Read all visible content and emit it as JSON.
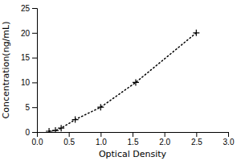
{
  "chart_data": {
    "type": "line",
    "x": [
      0.19,
      0.29,
      0.38,
      0.6,
      1.0,
      1.55,
      2.5
    ],
    "values": [
      0.16,
      0.31,
      0.78,
      2.5,
      5.0,
      10.0,
      20.0
    ],
    "xlabel": "Optical Density",
    "ylabel": "Concentration(ng/mL)",
    "xlim": [
      0,
      3
    ],
    "ylim": [
      0,
      25
    ],
    "xticks": [
      {
        "value": 0,
        "label": "0.0"
      },
      0.5,
      {
        "value": 1,
        "label": "1.0"
      },
      1.5,
      {
        "value": 2,
        "label": "2.0"
      },
      2.5,
      {
        "value": 3,
        "label": "3.0"
      }
    ],
    "yticks": [
      0,
      5,
      10,
      15,
      20,
      25
    ],
    "color": "#000000",
    "marker": "plus",
    "line_style": "dotted",
    "grid": false
  }
}
